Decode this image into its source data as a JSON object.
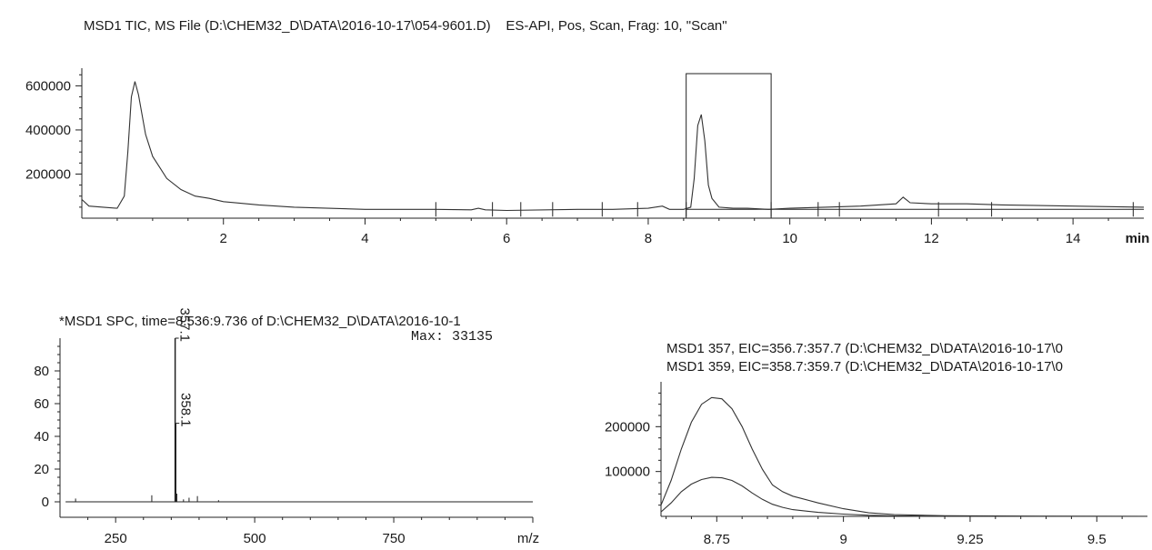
{
  "header": {
    "title": "MSD1 TIC, MS File (D:\\CHEM32_D\\DATA\\2016-10-17\\054-9601.D)    ES-API, Pos, Scan, Frag: 10, \"Scan\""
  },
  "spectrum_panel": {
    "title": "*MSD1 SPC, time=8.536:9.736 of D:\\CHEM32_D\\DATA\\2016-10-1",
    "max_label": "Max: 33135"
  },
  "eic_panel": {
    "line1": "MSD1 357, EIC=356.7:357.7 (D:\\CHEM32_D\\DATA\\2016-10-17\\0",
    "line2": "MSD1 359, EIC=358.7:359.7 (D:\\CHEM32_D\\DATA\\2016-10-17\\0"
  },
  "chart_data": [
    {
      "type": "line",
      "name": "tic",
      "xlabel": "min",
      "xlim": [
        0,
        15
      ],
      "ylim": [
        0,
        680000
      ],
      "x_ticks": [
        2,
        4,
        6,
        8,
        10,
        12,
        14
      ],
      "y_ticks": [
        200000,
        400000,
        600000
      ],
      "selection_box_x": [
        8.536,
        9.736
      ],
      "x": [
        0.0,
        0.1,
        0.3,
        0.5,
        0.6,
        0.65,
        0.7,
        0.75,
        0.8,
        0.85,
        0.9,
        1.0,
        1.1,
        1.2,
        1.4,
        1.6,
        1.8,
        2.0,
        2.5,
        3.0,
        4.0,
        5.0,
        5.5,
        5.6,
        5.7,
        6.0,
        7.0,
        7.5,
        8.0,
        8.2,
        8.3,
        8.5,
        8.6,
        8.65,
        8.7,
        8.75,
        8.8,
        8.85,
        8.9,
        9.0,
        9.2,
        9.4,
        9.7,
        10.0,
        10.5,
        11.0,
        11.5,
        11.6,
        11.7,
        12.0,
        12.5,
        13.0,
        14.0,
        15.0
      ],
      "y": [
        85000,
        55000,
        50000,
        45000,
        100000,
        300000,
        550000,
        620000,
        560000,
        470000,
        380000,
        280000,
        230000,
        180000,
        130000,
        100000,
        90000,
        75000,
        60000,
        50000,
        40000,
        40000,
        38000,
        45000,
        38000,
        35000,
        40000,
        40000,
        45000,
        55000,
        40000,
        40000,
        50000,
        180000,
        420000,
        470000,
        350000,
        150000,
        90000,
        50000,
        45000,
        45000,
        40000,
        45000,
        50000,
        55000,
        65000,
        95000,
        70000,
        65000,
        65000,
        60000,
        55000,
        50000
      ],
      "baseline_y": 40000
    },
    {
      "type": "bar",
      "name": "spectrum",
      "xlabel": "m/z",
      "xlim": [
        150,
        1000
      ],
      "ylim": [
        -5,
        100
      ],
      "x_ticks": [
        250,
        500,
        750,
        1000
      ],
      "y_ticks": [
        0,
        20,
        40,
        60,
        80
      ],
      "x": [
        178,
        315,
        357,
        358,
        360,
        372,
        382,
        397,
        435
      ],
      "values": [
        2,
        4,
        100,
        48,
        5,
        1.5,
        2.5,
        3.5,
        1
      ],
      "peak_labels": [
        {
          "label": "357.1",
          "x": 357,
          "y": 100
        },
        {
          "label": "358.1",
          "x": 358,
          "y": 48
        }
      ]
    },
    {
      "type": "line",
      "name": "eic",
      "xlim": [
        8.64,
        9.6
      ],
      "ylim": [
        0,
        300000
      ],
      "x_ticks": [
        8.75,
        9,
        9.25,
        9.5
      ],
      "y_ticks": [
        100000,
        200000
      ],
      "series": [
        {
          "x": [
            8.64,
            8.66,
            8.68,
            8.7,
            8.72,
            8.74,
            8.76,
            8.78,
            8.8,
            8.82,
            8.84,
            8.86,
            8.88,
            8.9,
            8.95,
            9.0,
            9.05,
            9.1,
            9.2,
            9.3,
            9.4,
            9.6
          ],
          "y": [
            25000,
            80000,
            150000,
            210000,
            250000,
            265000,
            262000,
            240000,
            200000,
            150000,
            105000,
            70000,
            55000,
            45000,
            30000,
            17000,
            8000,
            4000,
            1500,
            800,
            500,
            300
          ]
        },
        {
          "x": [
            8.64,
            8.66,
            8.68,
            8.7,
            8.72,
            8.74,
            8.76,
            8.78,
            8.8,
            8.82,
            8.84,
            8.86,
            8.88,
            8.9,
            8.95,
            9.0,
            9.05,
            9.1,
            9.2,
            9.3,
            9.4,
            9.6
          ],
          "y": [
            10000,
            30000,
            55000,
            72000,
            82000,
            87000,
            86000,
            80000,
            68000,
            52000,
            38000,
            27000,
            20000,
            15000,
            9000,
            5000,
            2500,
            1200,
            500,
            300,
            200,
            100
          ]
        }
      ]
    }
  ]
}
